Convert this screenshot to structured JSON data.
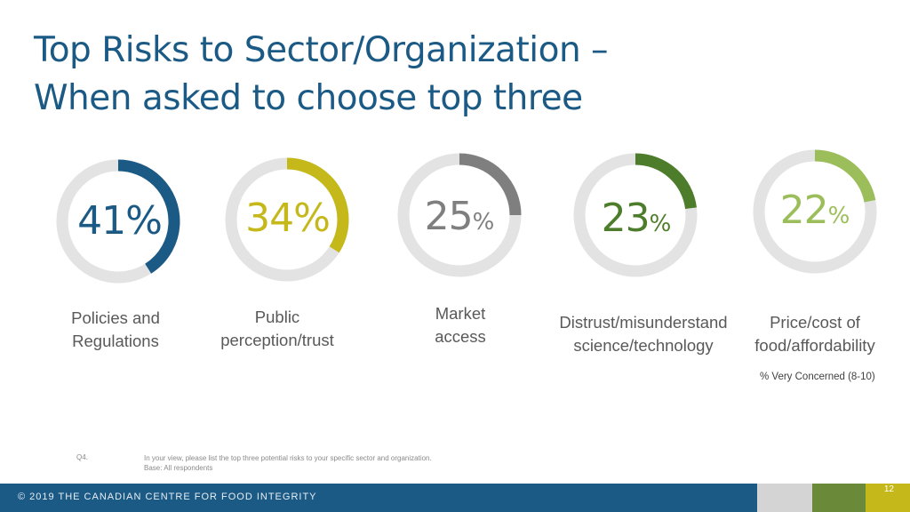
{
  "title": {
    "line1": "Top Risks to  Sector/Organization –",
    "line2": "When asked to choose top three"
  },
  "colors": {
    "title": "#1c5a86",
    "track": "#e3e3e3",
    "footer_bar": "#1c5a86"
  },
  "chart_data": {
    "type": "pie",
    "subtype": "donut-progress-rings",
    "items": [
      {
        "label_line1": "Policies and",
        "label_line2": "Regulations",
        "value": 41,
        "display": "41",
        "symbol": "%",
        "color": "#1c5a86"
      },
      {
        "label_line1": "Public",
        "label_line2": "perception/trust",
        "value": 34,
        "display": "34",
        "symbol": "%",
        "color": "#c4b81a"
      },
      {
        "label_line1": "Market",
        "label_line2": "access",
        "value": 25,
        "display": "25",
        "symbol": "%",
        "color": "#7f7f7f"
      },
      {
        "label_line1": "Distrust/misunderstand",
        "label_line2": "science/technology",
        "value": 23,
        "display": "23",
        "symbol": "%",
        "color": "#4d7d2a"
      },
      {
        "label_line1": "Price/cost of",
        "label_line2": "food/affordability",
        "value": 22,
        "display": "22",
        "symbol": "%",
        "color": "#9cbe5a"
      }
    ],
    "value_max": 100,
    "note": "% Very Concerned (8-10)"
  },
  "footnote": {
    "question_id": "Q4.",
    "question_text": "In your view, please list the top three potential risks to your specific sector and organization.",
    "base": "Base: All respondents"
  },
  "footer": {
    "copyright": "© 2019 THE CANADIAN CENTRE FOR FOOD INTEGRITY",
    "page_number": "12"
  }
}
